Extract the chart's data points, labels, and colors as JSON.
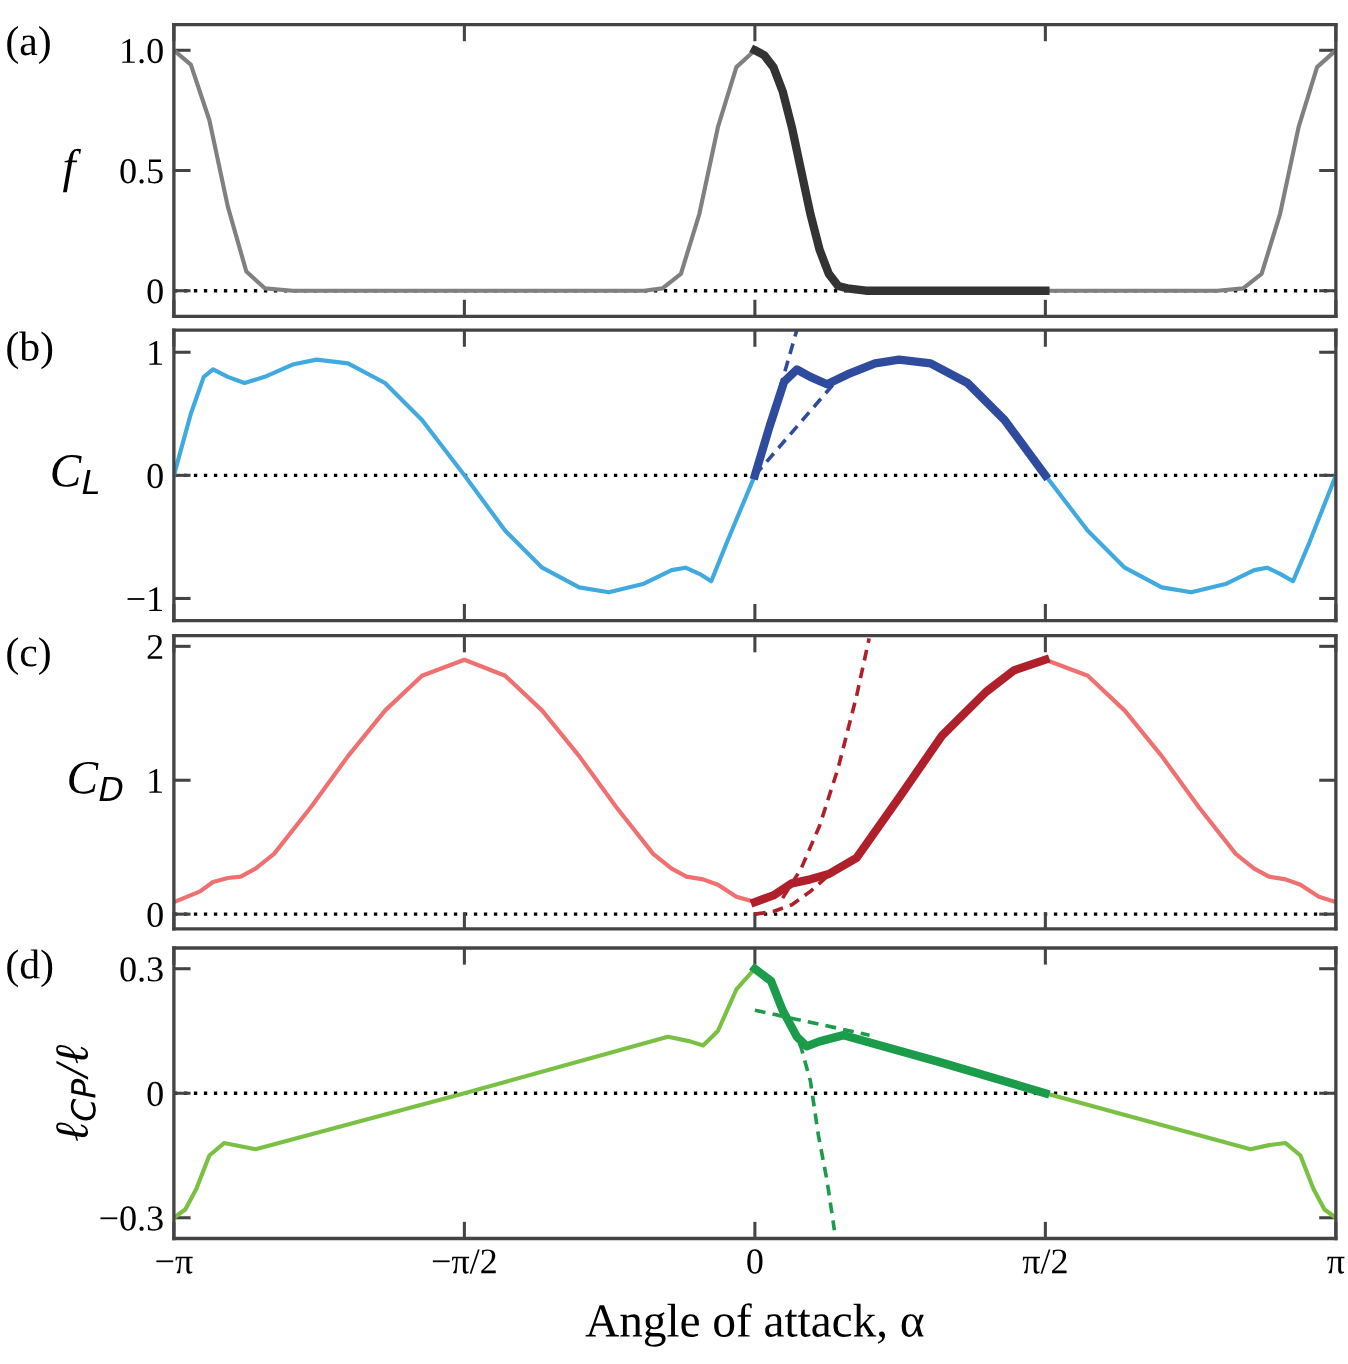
{
  "chart_data": [
    {
      "type": "line",
      "title": "(a)",
      "ylabel": "f",
      "ylim": [
        -0.107,
        1.107
      ],
      "yticks": [
        0,
        0.5,
        {
          "value": 1,
          "label": "1.0"
        }
      ],
      "xlim": [
        -3.1416,
        3.1416
      ],
      "xticks": [
        {
          "value": -3.1416,
          "label": null
        },
        {
          "value": -1.5708,
          "label": null
        },
        {
          "value": 0,
          "label": null
        },
        {
          "value": 1.5708,
          "label": null
        },
        {
          "value": 3.1416,
          "label": null
        }
      ],
      "tick_labels": "y",
      "grid": false,
      "legend": false,
      "ref_lines": [
        {
          "axis": "y",
          "value": 0,
          "color": "#000000",
          "line_style": "dotted"
        }
      ],
      "series": [
        {
          "color": "#808080",
          "line_style": "solid",
          "x": [
            -3.1416,
            -3.05,
            -2.95,
            -2.85,
            -2.75,
            -2.65,
            -2.5,
            -1.5,
            -0.7,
            -0.6,
            -0.5,
            -0.4,
            -0.3,
            -0.2,
            -0.1,
            0,
            0.8,
            1.5708,
            2.5,
            2.64,
            2.74,
            2.84,
            2.94,
            3.04,
            3.1416
          ],
          "values": [
            1,
            0.94,
            0.71,
            0.35,
            0.08,
            0.01,
            0,
            0,
            0,
            0,
            0.01,
            0.07,
            0.32,
            0.68,
            0.93,
            1,
            null,
            0,
            0,
            0.01,
            0.07,
            0.32,
            0.68,
            0.93,
            1
          ]
        },
        {
          "color": "#333333",
          "line_style": "solid",
          "x": [
            0,
            0.05,
            0.1,
            0.15,
            0.2,
            0.25,
            0.3,
            0.35,
            0.4,
            0.45,
            0.5,
            0.6,
            1.0,
            1.5708
          ],
          "values": [
            1,
            0.98,
            0.93,
            0.83,
            0.68,
            0.5,
            0.32,
            0.17,
            0.07,
            0.02,
            0.01,
            0,
            0,
            0
          ]
        }
      ]
    },
    {
      "type": "line",
      "title": "(b)",
      "ylabel": "C$_{L}$",
      "ylim": [
        -1.18,
        1.18
      ],
      "yticks": [
        {
          "value": -1,
          "label": "−1"
        },
        0,
        1
      ],
      "xlim": [
        -3.1416,
        3.1416
      ],
      "xticks": [
        {
          "value": -3.1416,
          "label": null
        },
        {
          "value": -1.5708,
          "label": null
        },
        {
          "value": 0,
          "label": null
        },
        {
          "value": 1.5708,
          "label": null
        },
        {
          "value": 3.1416,
          "label": null
        }
      ],
      "tick_labels": "y",
      "grid": false,
      "legend": false,
      "ref_lines": [
        {
          "axis": "y",
          "value": 0,
          "color": "#000000",
          "line_style": "dotted"
        }
      ],
      "series": [
        {
          "color": "#3fa9e0",
          "line_style": "solid",
          "x": [
            -3.1416,
            -3.05,
            -2.98,
            -2.93,
            -2.85,
            -2.76,
            -2.65,
            -2.5,
            -2.37,
            -2.2,
            -2.0,
            -1.8,
            -1.5708,
            -1.35,
            -1.15,
            -0.95,
            -0.79,
            -0.6,
            -0.45,
            -0.375,
            -0.3,
            -0.236,
            -0.15,
            0,
            0.8,
            1.5708,
            1.8,
            2.0,
            2.2,
            2.36,
            2.55,
            2.7,
            2.77,
            2.84,
            2.91,
            3.0,
            3.1416
          ],
          "values": [
            0,
            0.5,
            0.8,
            0.86,
            0.8,
            0.75,
            0.8,
            0.9,
            0.94,
            0.91,
            0.75,
            0.45,
            0,
            -0.45,
            -0.75,
            -0.91,
            -0.95,
            -0.88,
            -0.77,
            -0.75,
            -0.8,
            -0.86,
            -0.54,
            0,
            null,
            0,
            -0.45,
            -0.75,
            -0.91,
            -0.95,
            -0.88,
            -0.77,
            -0.75,
            -0.8,
            -0.86,
            -0.54,
            0
          ]
        },
        {
          "color": "#2f4b9e",
          "line_style": "solid",
          "x": [
            0,
            0.08,
            0.158,
            0.227,
            0.3,
            0.39,
            0.5,
            0.65,
            0.78,
            0.95,
            1.15,
            1.35,
            1.5708
          ],
          "values": [
            0,
            0.4,
            0.76,
            0.86,
            0.8,
            0.74,
            0.82,
            0.91,
            0.94,
            0.91,
            0.75,
            0.45,
            0
          ]
        },
        {
          "color": "#2f4b9e",
          "line_style": "dashed",
          "x": [
            0,
            0.227
          ],
          "values": [
            0,
            1.18
          ]
        },
        {
          "color": "#2f4b9e",
          "line_style": "dashed",
          "x": [
            0,
            0.436
          ],
          "values": [
            0,
            0.76
          ]
        }
      ]
    },
    {
      "type": "line",
      "title": "(c)",
      "ylabel": "C$_{D}$",
      "ylim": [
        -0.11,
        2.08
      ],
      "yticks": [
        0,
        1,
        2
      ],
      "xlim": [
        -3.1416,
        3.1416
      ],
      "xticks": [
        {
          "value": -3.1416,
          "label": null
        },
        {
          "value": -1.5708,
          "label": null
        },
        {
          "value": 0,
          "label": null
        },
        {
          "value": 1.5708,
          "label": null
        },
        {
          "value": 3.1416,
          "label": null
        }
      ],
      "tick_labels": "y",
      "grid": false,
      "legend": false,
      "ref_lines": [
        {
          "axis": "y",
          "value": 0,
          "color": "#000000",
          "line_style": "dotted"
        }
      ],
      "series": [
        {
          "color": "#f07070",
          "line_style": "solid",
          "x": [
            -3.1416,
            -3.0,
            -2.93,
            -2.85,
            -2.78,
            -2.7,
            -2.6,
            -2.4,
            -2.2,
            -2.0,
            -1.8,
            -1.5708,
            -1.35,
            -1.15,
            -0.95,
            -0.75,
            -0.55,
            -0.45,
            -0.37,
            -0.28,
            -0.2,
            -0.1,
            0,
            0.8,
            1.5708,
            1.8,
            2.0,
            2.2,
            2.4,
            2.6,
            2.7,
            2.78,
            2.87,
            2.95,
            3.05,
            3.1416
          ],
          "values": [
            0.09,
            0.17,
            0.24,
            0.27,
            0.28,
            0.34,
            0.45,
            0.8,
            1.18,
            1.52,
            1.78,
            1.9,
            1.78,
            1.52,
            1.18,
            0.8,
            0.45,
            0.34,
            0.28,
            0.26,
            0.22,
            0.13,
            0.09,
            null,
            1.9,
            1.78,
            1.52,
            1.18,
            0.8,
            0.45,
            0.34,
            0.28,
            0.26,
            0.22,
            0.13,
            0.09
          ]
        },
        {
          "color": "#b0202a",
          "line_style": "solid",
          "x": [
            0,
            0.1,
            0.2,
            0.3,
            0.4,
            0.55,
            0.78,
            1.01,
            1.25,
            1.4,
            1.5708
          ],
          "values": [
            0.09,
            0.14,
            0.23,
            0.26,
            0.3,
            0.42,
            0.87,
            1.33,
            1.66,
            1.82,
            1.9
          ]
        },
        {
          "color": "#b0202a",
          "line_style": "dashed",
          "x": [
            0.15,
            0.25,
            0.35,
            0.45,
            0.55,
            0.618
          ],
          "values": [
            0.12,
            0.34,
            0.66,
            1.09,
            1.63,
            2.06
          ]
        },
        {
          "color": "#b0202a",
          "line_style": "dashed",
          "x": [
            0,
            0.1,
            0.2,
            0.3,
            0.39
          ],
          "values": [
            0,
            0.02,
            0.07,
            0.17,
            0.28
          ]
        }
      ]
    },
    {
      "type": "line",
      "title": "(d)",
      "ylabel": "ℓ$_{CP}$/ℓ",
      "xlabel": "Angle of attack, α",
      "ylim": [
        -0.35,
        0.35
      ],
      "yticks": [
        {
          "value": -0.3,
          "label": "−0.3"
        },
        0,
        0.3
      ],
      "xlim": [
        -3.1416,
        3.1416
      ],
      "xticks": [
        {
          "value": -3.1416,
          "label": "−π"
        },
        {
          "value": -1.5708,
          "label": "−π/2"
        },
        {
          "value": 0,
          "label": "0"
        },
        {
          "value": 1.5708,
          "label": "π/2"
        },
        {
          "value": 3.1416,
          "label": "π"
        }
      ],
      "grid": false,
      "legend": false,
      "ref_lines": [
        {
          "axis": "y",
          "value": 0,
          "color": "#000000",
          "line_style": "dotted"
        }
      ],
      "series": [
        {
          "color": "#7ac143",
          "line_style": "solid",
          "x": [
            -3.1416,
            -3.08,
            -3.02,
            -2.95,
            -2.87,
            -2.7,
            -1.5708,
            -0.47,
            -0.35,
            -0.28,
            -0.2,
            -0.1,
            0,
            0.8,
            1.5708,
            2.68,
            2.78,
            2.87,
            2.95,
            3.02,
            3.08,
            3.1416
          ],
          "values": [
            -0.3,
            -0.28,
            -0.23,
            -0.15,
            -0.12,
            -0.135,
            0,
            0.136,
            0.125,
            0.115,
            0.15,
            0.25,
            0.3,
            null,
            0,
            -0.135,
            -0.125,
            -0.12,
            -0.15,
            -0.23,
            -0.28,
            -0.3
          ]
        },
        {
          "color": "#1a9c4a",
          "line_style": "solid",
          "x": [
            0,
            0.088,
            0.15,
            0.227,
            0.28,
            0.35,
            0.48,
            1.0,
            1.5708
          ],
          "values": [
            0.3,
            0.27,
            0.2,
            0.136,
            0.113,
            0.125,
            0.14,
            0.075,
            0
          ]
        },
        {
          "color": "#1a9c4a",
          "line_style": "dashed",
          "x": [
            0,
            0.62
          ],
          "values": [
            0.2,
            0.14
          ]
        },
        {
          "color": "#1a9c4a",
          "line_style": "dashed",
          "x": [
            0.2,
            0.25,
            0.3,
            0.343,
            0.39,
            0.43
          ],
          "values": [
            0.16,
            0.11,
            0.03,
            -0.1,
            -0.21,
            -0.33
          ]
        }
      ]
    }
  ]
}
